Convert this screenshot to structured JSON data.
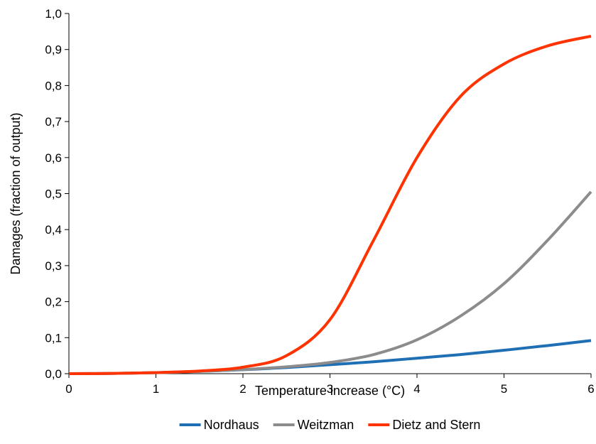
{
  "chart_data": {
    "type": "line",
    "xlabel": "Temperature increase (°C)",
    "ylabel": "Damages (fraction of output)",
    "xlim": [
      0,
      6
    ],
    "ylim": [
      0,
      1
    ],
    "x_ticks": [
      "0",
      "1",
      "2",
      "3",
      "4",
      "5",
      "6"
    ],
    "y_ticks": [
      "0,0",
      "0,1",
      "0,2",
      "0,3",
      "0,4",
      "0,5",
      "0,6",
      "0,7",
      "0,8",
      "0,9",
      "1,0"
    ],
    "grid": false,
    "legend_position": "bottom",
    "x": [
      0,
      0.5,
      1,
      1.5,
      2,
      2.5,
      3,
      3.5,
      4,
      4.5,
      5,
      5.5,
      6
    ],
    "series": [
      {
        "name": "Nordhaus",
        "color": "#1f6fb5",
        "values": [
          0,
          0.0007,
          0.0028,
          0.0063,
          0.011,
          0.017,
          0.025,
          0.033,
          0.043,
          0.053,
          0.065,
          0.078,
          0.092
        ]
      },
      {
        "name": "Weitzman",
        "color": "#8c8c8c",
        "values": [
          0,
          0.0007,
          0.0028,
          0.0064,
          0.0115,
          0.019,
          0.031,
          0.053,
          0.094,
          0.16,
          0.25,
          0.37,
          0.505
        ]
      },
      {
        "name": "Dietz and Stern",
        "color": "#ff3300",
        "values": [
          0,
          0.0007,
          0.003,
          0.0075,
          0.018,
          0.05,
          0.15,
          0.37,
          0.6,
          0.77,
          0.86,
          0.91,
          0.937
        ]
      }
    ]
  }
}
